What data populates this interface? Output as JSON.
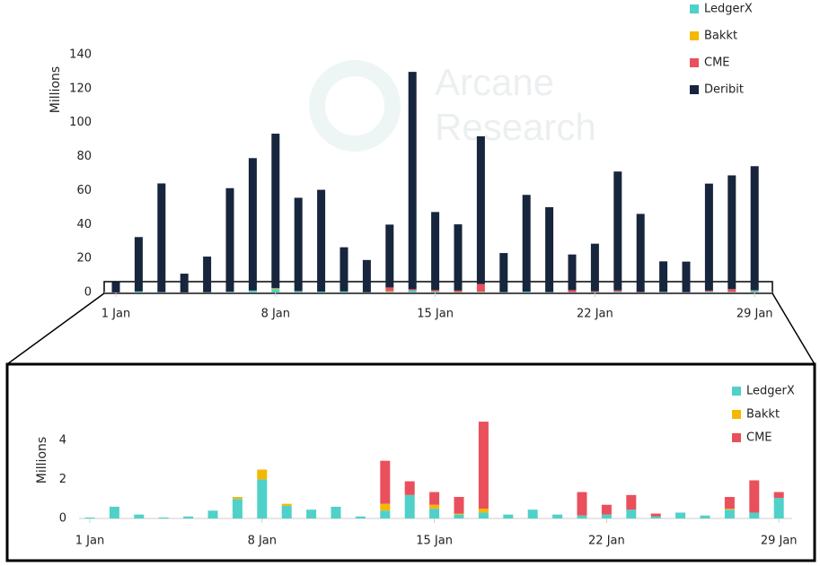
{
  "chart_data": [
    {
      "type": "bar",
      "stacked": true,
      "y_label": "Millions",
      "watermark": [
        "Arcane",
        "Research"
      ],
      "categories": [
        "1 Jan",
        null,
        null,
        null,
        null,
        null,
        null,
        "8 Jan",
        null,
        null,
        null,
        null,
        null,
        null,
        "15 Jan",
        null,
        null,
        null,
        null,
        null,
        null,
        "22 Jan",
        null,
        null,
        null,
        null,
        null,
        null,
        "29 Jan"
      ],
      "ylim": [
        0,
        140
      ],
      "yticks": [
        0,
        20,
        40,
        60,
        80,
        100,
        120,
        140
      ],
      "series": [
        {
          "name": "LedgerX",
          "color": "#4fd1c9",
          "values": [
            0.05,
            0.6,
            0.2,
            0.05,
            0.1,
            0.4,
            1.0,
            2.0,
            0.65,
            0.45,
            0.6,
            0.1,
            0.4,
            1.2,
            0.5,
            0.2,
            0.3,
            0.2,
            0.45,
            0.2,
            0.15,
            0.2,
            0.45,
            0.1,
            0.3,
            0.15,
            0.45,
            0.3,
            1.05
          ]
        },
        {
          "name": "Bakkt",
          "color": "#f4b800",
          "values": [
            0,
            0,
            0,
            0,
            0,
            0,
            0.1,
            0.5,
            0.1,
            0,
            0,
            0,
            0.35,
            0,
            0.2,
            0.05,
            0.2,
            0,
            0,
            0,
            0,
            0,
            0,
            0,
            0,
            0,
            0.05,
            0,
            0
          ]
        },
        {
          "name": "CME",
          "color": "#e9505c",
          "values": [
            0,
            0,
            0,
            0,
            0,
            0,
            0,
            0,
            0,
            0,
            0,
            0,
            2.2,
            0.7,
            0.65,
            0.85,
            4.45,
            0,
            0,
            0,
            1.2,
            0.5,
            0.75,
            0.15,
            0,
            0,
            0.6,
            1.65,
            0.3
          ]
        },
        {
          "name": "Deribit",
          "color": "#17253d",
          "values": [
            6,
            32,
            64,
            11,
            21,
            61,
            78,
            91,
            55,
            60,
            26,
            19,
            37,
            128,
            46,
            39,
            87,
            23,
            57,
            50,
            21,
            28,
            70,
            46,
            18,
            18,
            63,
            67,
            73
          ]
        }
      ]
    },
    {
      "type": "bar",
      "stacked": true,
      "y_label": "Millions",
      "categories": [
        "1 Jan",
        null,
        null,
        null,
        null,
        null,
        null,
        "8 Jan",
        null,
        null,
        null,
        null,
        null,
        null,
        "15 Jan",
        null,
        null,
        null,
        null,
        null,
        null,
        "22 Jan",
        null,
        null,
        null,
        null,
        null,
        null,
        "29 Jan"
      ],
      "ylim": [
        0,
        5
      ],
      "yticks": [
        0,
        2,
        4
      ],
      "series": [
        {
          "name": "LedgerX",
          "color": "#4fd1c9",
          "values": [
            0.05,
            0.6,
            0.2,
            0.05,
            0.1,
            0.4,
            1.0,
            2.0,
            0.65,
            0.45,
            0.6,
            0.1,
            0.4,
            1.2,
            0.5,
            0.2,
            0.3,
            0.2,
            0.45,
            0.2,
            0.15,
            0.2,
            0.45,
            0.1,
            0.3,
            0.15,
            0.45,
            0.3,
            1.05
          ]
        },
        {
          "name": "Bakkt",
          "color": "#f4b800",
          "values": [
            0,
            0,
            0,
            0,
            0,
            0,
            0.1,
            0.5,
            0.1,
            0,
            0,
            0,
            0.35,
            0,
            0.2,
            0.05,
            0.2,
            0,
            0,
            0,
            0,
            0,
            0,
            0,
            0,
            0,
            0.05,
            0,
            0
          ]
        },
        {
          "name": "CME",
          "color": "#e9505c",
          "values": [
            0,
            0,
            0,
            0,
            0,
            0,
            0,
            0,
            0,
            0,
            0,
            0,
            2.2,
            0.7,
            0.65,
            0.85,
            4.45,
            0,
            0,
            0,
            1.2,
            0.5,
            0.75,
            0.15,
            0,
            0,
            0.6,
            1.65,
            0.3
          ]
        }
      ]
    }
  ]
}
